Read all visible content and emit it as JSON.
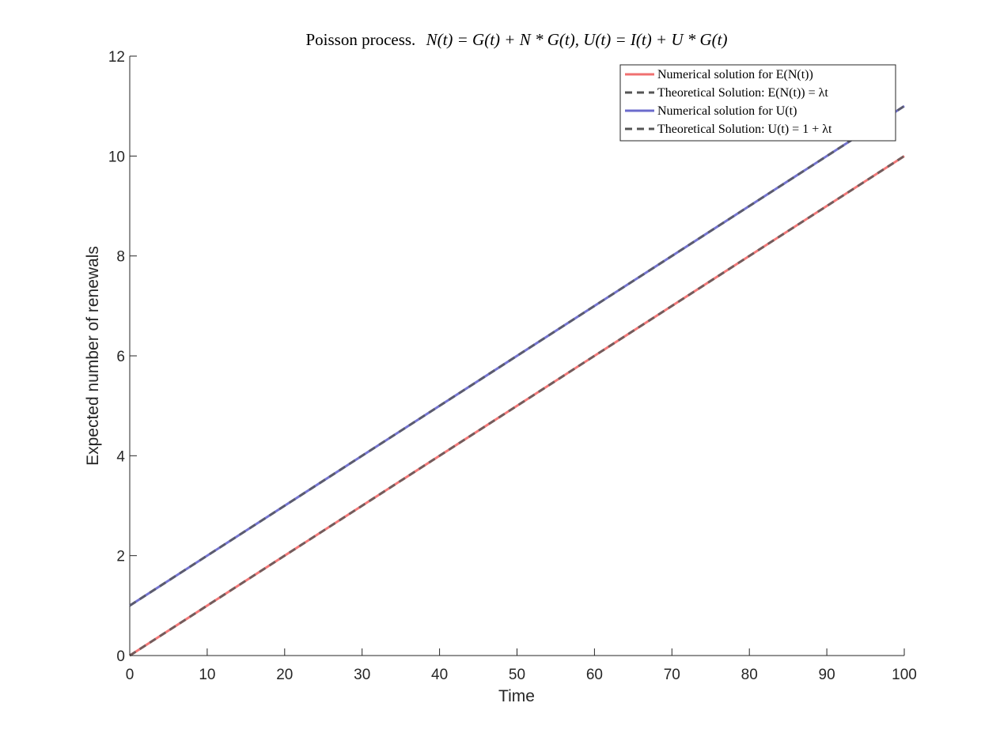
{
  "chart_data": {
    "type": "line",
    "title_plain": "Poisson process.",
    "title_math": "N(t) = G(t) + N * G(t), U(t) = I(t) + U * G(t)",
    "xlabel": "Time",
    "ylabel": "Expected number of renewals",
    "xlim": [
      0,
      100
    ],
    "ylim": [
      0,
      12
    ],
    "xticks": [
      0,
      10,
      20,
      30,
      40,
      50,
      60,
      70,
      80,
      90,
      100
    ],
    "yticks": [
      0,
      2,
      4,
      6,
      8,
      10,
      12
    ],
    "grid": false,
    "legend_position": "top-right",
    "series": [
      {
        "name": "Numerical solution for E(N(t))",
        "color": "#f07070",
        "style": "solid",
        "x": [
          0,
          100
        ],
        "y": [
          0,
          10
        ]
      },
      {
        "name": "Theoretical Solution: E(N(t)) = λt",
        "color": "#555555",
        "style": "dashed",
        "x": [
          0,
          100
        ],
        "y": [
          0,
          10
        ]
      },
      {
        "name": "Numerical solution for U(t)",
        "color": "#6b6bcc",
        "style": "solid",
        "x": [
          0,
          100
        ],
        "y": [
          1,
          11
        ]
      },
      {
        "name": "Theoretical Solution: U(t) = 1 + λt",
        "color": "#555555",
        "style": "dashed",
        "x": [
          0,
          100
        ],
        "y": [
          1,
          11
        ]
      }
    ]
  }
}
